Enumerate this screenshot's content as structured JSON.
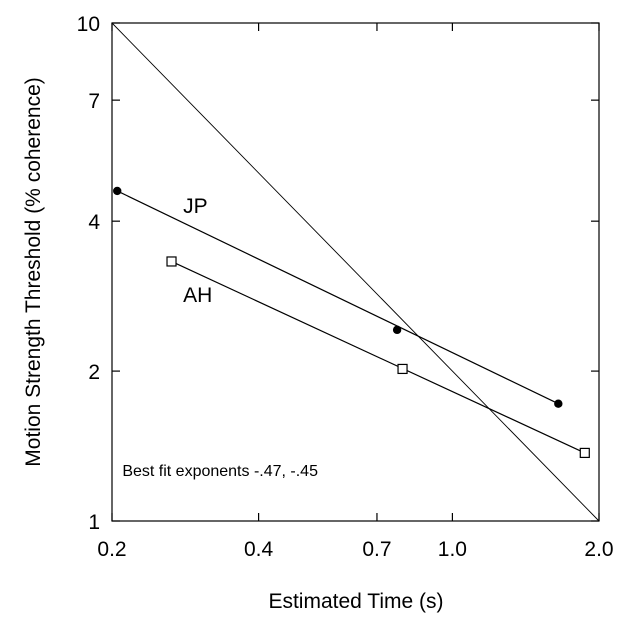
{
  "chart_data": {
    "type": "scatter",
    "xlabel": "Estimated Time (s)",
    "ylabel": "Motion Strength Threshold (% coherence)",
    "x_scale": "log",
    "y_scale": "log",
    "xlim": [
      0.2,
      2.0
    ],
    "ylim": [
      1,
      10
    ],
    "x_ticks": [
      0.2,
      0.4,
      0.7,
      1.0,
      2.0
    ],
    "x_tick_labels": [
      "0.2",
      "0.4",
      "0.7",
      "1.0",
      "2.0"
    ],
    "y_ticks": [
      1,
      2,
      4,
      7,
      10
    ],
    "y_tick_labels": [
      "1",
      "2",
      "4",
      "7",
      "10"
    ],
    "grid": false,
    "series": [
      {
        "name": "JP",
        "marker": "filled-circle",
        "points": [
          {
            "x": 0.205,
            "y": 4.6
          },
          {
            "x": 0.77,
            "y": 2.42
          },
          {
            "x": 1.65,
            "y": 1.72
          }
        ],
        "fit_line": {
          "x": [
            0.205,
            1.65
          ],
          "y": [
            4.6,
            1.72
          ]
        }
      },
      {
        "name": "AH",
        "marker": "open-square",
        "points": [
          {
            "x": 0.265,
            "y": 3.32
          },
          {
            "x": 0.79,
            "y": 2.02
          },
          {
            "x": 1.87,
            "y": 1.37
          }
        ],
        "fit_line": {
          "x": [
            0.265,
            1.87
          ],
          "y": [
            3.32,
            1.37
          ]
        }
      }
    ],
    "reference_line": {
      "x": [
        0.2,
        2.0
      ],
      "y": [
        10,
        1
      ]
    },
    "annotations": [
      {
        "text": "JP",
        "x": 0.28,
        "y": 4.15
      },
      {
        "text": "AH",
        "x": 0.28,
        "y": 2.75
      },
      {
        "text": "Best fit exponents -.47, -.45",
        "x": 0.21,
        "y": 1.23
      }
    ]
  }
}
